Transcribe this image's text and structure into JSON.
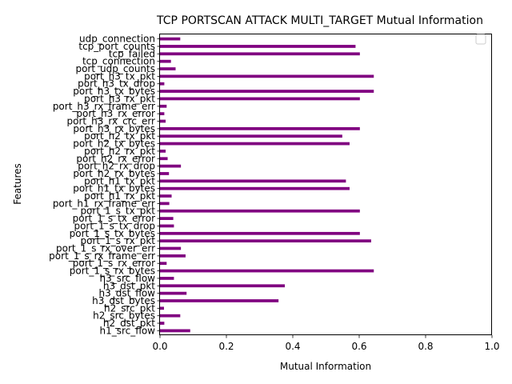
{
  "chart_data": {
    "type": "bar",
    "orientation": "horizontal",
    "title": "TCP PORTSCAN ATTACK MULTI_TARGET Mutual Information",
    "xlabel": "Mutual Information",
    "ylabel": "Features",
    "xlim": [
      0,
      1.0
    ],
    "xticks": [
      "0.0",
      "0.2",
      "0.4",
      "0.6",
      "0.8",
      "1.0"
    ],
    "grid": false,
    "legend": {
      "position": "top-right",
      "entries": []
    },
    "bar_color": "#800080",
    "categories": [
      "h1_src_flow",
      "h2_dst_pkt",
      "h2_src_bytes",
      "h2_src_pkt",
      "h3_dst_bytes",
      "h3_dst_flow",
      "h3_dst_pkt",
      "h3_src_flow",
      "port_1_s_rx_bytes",
      "port_1_s_rx_error",
      "port_1_s_rx_frame_err",
      "port_1_s_rx_over_err",
      "port_1_s_rx_pkt",
      "port_1_s_tx_bytes",
      "port_1_s_tx_drop",
      "port_1_s_tx_error",
      "port_1_s_tx_pkt",
      "port_h1_rx_frame_err",
      "port_h1_rx_pkt",
      "port_h1_tx_bytes",
      "port_h1_tx_pkt",
      "port_h2_rx_bytes",
      "port_h2_rx_drop",
      "port_h2_rx_error",
      "port_h2_rx_pkt",
      "port_h2_tx_bytes",
      "port_h2_tx_pkt",
      "port_h3_rx_bytes",
      "port_h3_rx_crc_err",
      "port_h3_rx_error",
      "port_h3_rx_frame_err",
      "port_h3_rx_pkt",
      "port_h3_tx_bytes",
      "port_h3_tx_drop",
      "port_h3_tx_pkt",
      "port_udp_counts",
      "tcp_connection",
      "tcp_failed",
      "tcp_port_counts",
      "udp_connection"
    ],
    "values": [
      0.091,
      0.013,
      0.061,
      0.012,
      0.357,
      0.08,
      0.376,
      0.042,
      0.644,
      0.02,
      0.077,
      0.063,
      0.636,
      0.602,
      0.042,
      0.04,
      0.602,
      0.028,
      0.035,
      0.571,
      0.56,
      0.027,
      0.063,
      0.023,
      0.017,
      0.571,
      0.549,
      0.602,
      0.017,
      0.013,
      0.02,
      0.602,
      0.644,
      0.013,
      0.644,
      0.047,
      0.033,
      0.602,
      0.589,
      0.061
    ]
  }
}
